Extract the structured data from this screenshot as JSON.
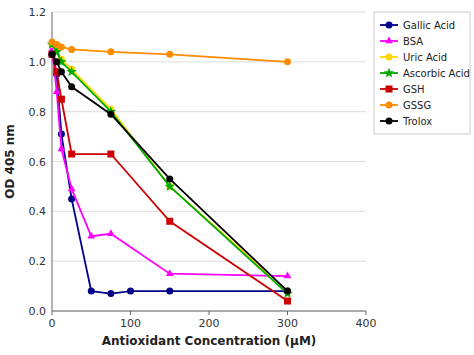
{
  "chart_data": {
    "type": "line",
    "xlabel": "Antioxidant Concentration (μM)",
    "ylabel": "OD 405 nm",
    "xlim": [
      0,
      400
    ],
    "ylim": [
      0,
      1.2
    ],
    "xticks": [
      0,
      100,
      200,
      300,
      400
    ],
    "yticks": [
      {
        "value": 0,
        "label": "0.0"
      },
      0.2,
      0.4,
      0.6,
      0.8,
      {
        "value": 1.0,
        "label": "1.0"
      },
      1.2
    ],
    "grid": true,
    "legend": "upper right",
    "series": [
      {
        "name": "Gallic Acid",
        "color": "#00008B",
        "marker": "circle",
        "x": [
          0,
          6,
          12,
          25,
          50,
          75,
          100,
          150,
          300
        ],
        "values": [
          1.03,
          0.95,
          0.71,
          0.45,
          0.08,
          0.07,
          0.08,
          0.08,
          0.08
        ]
      },
      {
        "name": "BSA",
        "color": "#FF00FF",
        "marker": "triangle",
        "x": [
          0,
          6,
          12,
          25,
          50,
          75,
          150,
          300
        ],
        "values": [
          1.05,
          0.88,
          0.65,
          0.49,
          0.3,
          0.31,
          0.15,
          0.14
        ]
      },
      {
        "name": "Uric Acid",
        "color": "#FFD700",
        "marker": "circle",
        "x": [
          0,
          6,
          12,
          25,
          75,
          150,
          300
        ],
        "values": [
          1.07,
          1.05,
          1.01,
          0.97,
          0.81,
          0.5,
          0.08
        ]
      },
      {
        "name": "Ascorbic Acid",
        "color": "#00AA00",
        "marker": "star",
        "x": [
          0,
          6,
          12,
          25,
          75,
          150,
          300
        ],
        "values": [
          1.07,
          1.04,
          1.0,
          0.96,
          0.8,
          0.5,
          0.07
        ]
      },
      {
        "name": "GSH",
        "color": "#CC0000",
        "marker": "square",
        "x": [
          0,
          6,
          12,
          25,
          75,
          150,
          300
        ],
        "values": [
          1.03,
          0.96,
          0.85,
          0.63,
          0.63,
          0.36,
          0.04
        ]
      },
      {
        "name": "GSSG",
        "color": "#FF8C00",
        "marker": "circle",
        "x": [
          0,
          6,
          12,
          25,
          75,
          150,
          300
        ],
        "values": [
          1.08,
          1.07,
          1.06,
          1.05,
          1.04,
          1.03,
          1.0
        ]
      },
      {
        "name": "Trolox",
        "color": "#000000",
        "marker": "circle",
        "x": [
          0,
          6,
          12,
          25,
          75,
          150,
          300
        ],
        "values": [
          1.03,
          1.0,
          0.96,
          0.9,
          0.79,
          0.53,
          0.08
        ]
      }
    ]
  }
}
